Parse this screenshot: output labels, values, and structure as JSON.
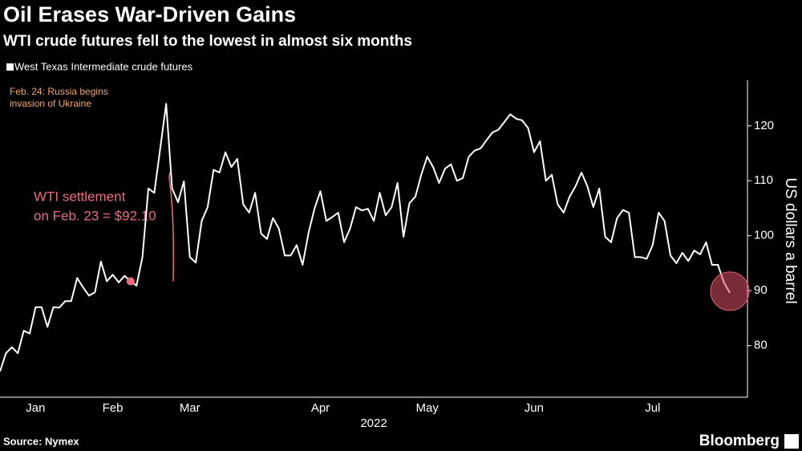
{
  "chart_data": {
    "type": "line",
    "title": "Oil Erases War-Driven Gains",
    "subtitle": "WTI crude futures fell to the lowest in almost six months",
    "ylabel": "US dollars a barrel",
    "xlabel": "2022",
    "source": "Source: Nymex",
    "brand": "Bloomberg",
    "categories": [
      null,
      null,
      null,
      null,
      null,
      null,
      "Jan",
      null,
      null,
      null,
      null,
      null,
      null,
      null,
      null,
      null,
      null,
      null,
      null,
      "Feb",
      null,
      null,
      null,
      null,
      null,
      null,
      null,
      null,
      null,
      null,
      null,
      null,
      "Mar",
      null,
      null,
      null,
      null,
      null,
      null,
      null,
      null,
      null,
      null,
      null,
      null,
      null,
      null,
      null,
      null,
      null,
      null,
      null,
      null,
      null,
      "Apr",
      null,
      null,
      null,
      null,
      null,
      null,
      null,
      null,
      null,
      null,
      null,
      null,
      null,
      null,
      null,
      null,
      null,
      "May",
      null,
      null,
      null,
      null,
      null,
      null,
      null,
      null,
      null,
      null,
      null,
      null,
      null,
      null,
      null,
      null,
      null,
      "Jun",
      null,
      null,
      null,
      null,
      null,
      null,
      null,
      null,
      null,
      null,
      null,
      null,
      null,
      null,
      null,
      null,
      null,
      null,
      null,
      "Jul",
      null,
      null,
      null,
      null,
      null,
      null,
      null,
      null,
      null,
      null,
      null,
      null,
      null
    ],
    "series": [
      {
        "name": "West Texas Intermediate crude futures",
        "color": "#ffffff",
        "values": [
          75.3,
          78.6,
          79.7,
          78.6,
          82.7,
          82.2,
          87,
          87,
          83.4,
          87,
          86.9,
          88.1,
          88.1,
          92.3,
          90.6,
          89.1,
          89.7,
          95.3,
          91.7,
          92.9,
          91.5,
          92.7,
          91.7,
          90.9,
          96.1,
          108.6,
          107.8,
          115.9,
          124,
          108.6,
          106.1,
          109.9,
          96.1,
          95.1,
          102.7,
          105.2,
          112,
          111.5,
          115.2,
          112.5,
          114,
          105.7,
          104.2,
          107.8,
          100.4,
          99.4,
          103.2,
          101.3,
          96.4,
          96.4,
          98.3,
          94.7,
          100.5,
          104.9,
          108.1,
          102.7,
          103.4,
          104.2,
          98.8,
          101.3,
          105.2,
          104.6,
          104.9,
          102.7,
          107.8,
          103.7,
          105.2,
          109.6,
          99.8,
          105.9,
          107.1,
          111.1,
          114.4,
          112.5,
          109.6,
          112.2,
          113,
          110,
          110.5,
          114.4,
          115.5,
          115.9,
          117.4,
          118.8,
          119.3,
          120.7,
          122.1,
          121.3,
          121,
          119.6,
          115.2,
          117.2,
          110,
          111.1,
          105.7,
          104.2,
          107.1,
          109,
          111.5,
          109,
          105.2,
          108.6,
          99.8,
          98.8,
          103.2,
          104.7,
          104.2,
          96.1,
          96.1,
          95.8,
          98.3,
          104.2,
          102.7,
          96.4,
          95,
          96.9,
          95.4,
          97.3,
          96.6,
          98.8,
          94.7,
          94.7,
          91.5,
          89.6
        ]
      }
    ],
    "ylim": [
      70.6,
      128.3
    ],
    "yticks": [
      80,
      90,
      100,
      110,
      120
    ],
    "annotations": [
      {
        "lines": [
          "Feb. 24: Russia begins",
          "invasion of Ukraine"
        ],
        "color": "#f0a868"
      },
      {
        "lines": [
          "WTI settlement",
          "on Feb. 23 = $92.10"
        ],
        "color": "#f06a7e",
        "index": 22
      }
    ]
  }
}
